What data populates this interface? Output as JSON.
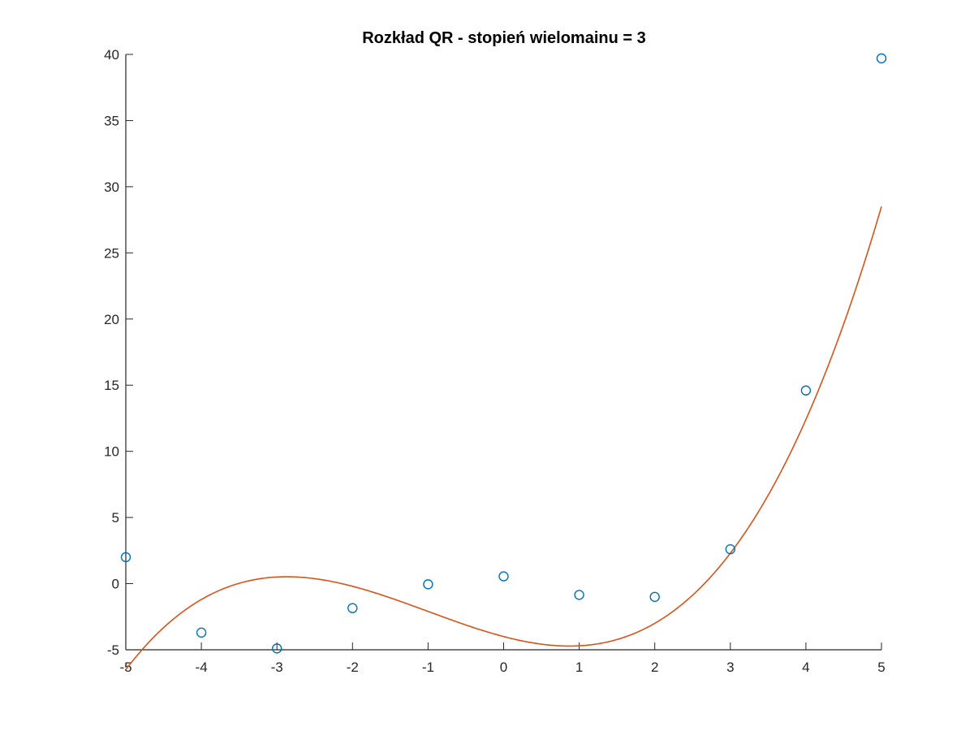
{
  "chart_data": {
    "type": "scatter",
    "title": "Rozkład QR - stopień wielomainu = 3",
    "xlabel": "",
    "ylabel": "",
    "xlim": [
      -5,
      5
    ],
    "ylim": [
      -5,
      40
    ],
    "xticks": [
      -5,
      -4,
      -3,
      -2,
      -1,
      0,
      1,
      2,
      3,
      4,
      5
    ],
    "yticks": [
      -5,
      0,
      5,
      10,
      15,
      20,
      25,
      30,
      35,
      40
    ],
    "grid": false,
    "series": [
      {
        "kind": "scatter",
        "marker": "circle",
        "color": "#0072BD",
        "x": [
          -5,
          -4,
          -3,
          -2,
          -1,
          0,
          1,
          2,
          3,
          4,
          5
        ],
        "y": [
          2.0,
          -3.7,
          -4.9,
          -1.85,
          -0.05,
          0.55,
          -0.85,
          -1.0,
          2.6,
          14.6,
          39.7
        ]
      },
      {
        "kind": "line",
        "color": "#D95319",
        "fit": "cubic",
        "coefficients": [
          0.2,
          0.6,
          -1.5,
          -4.0
        ],
        "x_range": [
          -5,
          5
        ]
      }
    ]
  }
}
